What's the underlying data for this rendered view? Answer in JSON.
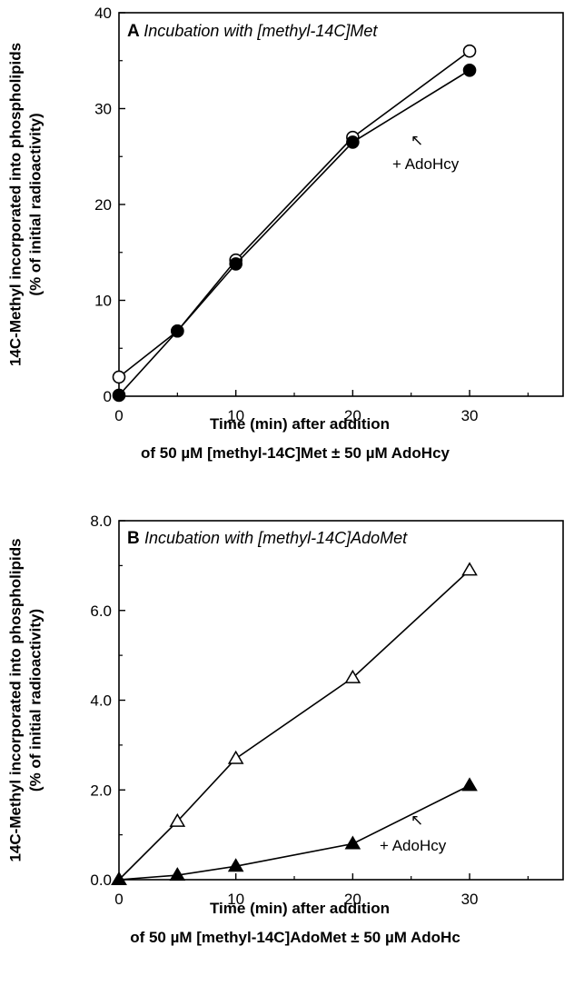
{
  "chart_data": [
    {
      "type": "line",
      "panel": "A",
      "title": "Incubation with [methyl-14C]Met",
      "ylabel_line1": "14C-Methyl incorporated into phospholipids",
      "ylabel_line2": "(% of initial radioactivity)",
      "xlabel_line1": "Time (min) after addition",
      "xlabel_line2": "of 50 µM [methyl-14C]Met ± 50 µM AdoHcy",
      "xlim": [
        0,
        38
      ],
      "ylim": [
        0,
        40
      ],
      "xticks": [
        0,
        10,
        20,
        30
      ],
      "xtick_labels": [
        "0",
        "10",
        "20",
        "30"
      ],
      "yticks": [
        0,
        10,
        20,
        30,
        40
      ],
      "ytick_labels": [
        "0",
        "10",
        "20",
        "30",
        "40"
      ],
      "series": [
        {
          "marker": "open-circle",
          "x": [
            0,
            5,
            10,
            20,
            30
          ],
          "y": [
            2.0,
            6.8,
            14.2,
            27.0,
            36.0
          ]
        },
        {
          "marker": "filled-circle",
          "x": [
            0,
            5,
            10,
            20,
            30
          ],
          "y": [
            0.1,
            6.8,
            13.8,
            26.5,
            34.0
          ]
        }
      ],
      "annotation": {
        "text": "+ AdoHcy",
        "points_to": "filled-circle",
        "arrow": "↖"
      }
    },
    {
      "type": "line",
      "panel": "B",
      "title": "Incubation with [methyl-14C]AdoMet",
      "ylabel_line1": "14C-Methyl incorporated into phospholipids",
      "ylabel_line2": "(% of initial radioactivity)",
      "xlabel_line1": "Time (min) after addition",
      "xlabel_line2": "of 50 µM [methyl-14C]AdoMet ± 50 µM AdoHc",
      "xlim": [
        0,
        38
      ],
      "ylim": [
        0,
        8
      ],
      "xticks": [
        0,
        10,
        20,
        30
      ],
      "xtick_labels": [
        "0",
        "10",
        "20",
        "30"
      ],
      "yticks": [
        0,
        2,
        4,
        6,
        8
      ],
      "ytick_labels": [
        "0.0",
        "2.0",
        "4.0",
        "6.0",
        "8.0"
      ],
      "series": [
        {
          "marker": "open-triangle",
          "x": [
            0,
            5,
            10,
            20,
            30
          ],
          "y": [
            0.0,
            1.3,
            2.7,
            4.5,
            6.9
          ]
        },
        {
          "marker": "filled-triangle",
          "x": [
            0,
            5,
            10,
            20,
            30
          ],
          "y": [
            0.0,
            0.1,
            0.3,
            0.8,
            2.1
          ]
        }
      ],
      "annotation": {
        "text": "+ AdoHcy",
        "points_to": "filled-triangle",
        "arrow": "↖"
      }
    }
  ]
}
